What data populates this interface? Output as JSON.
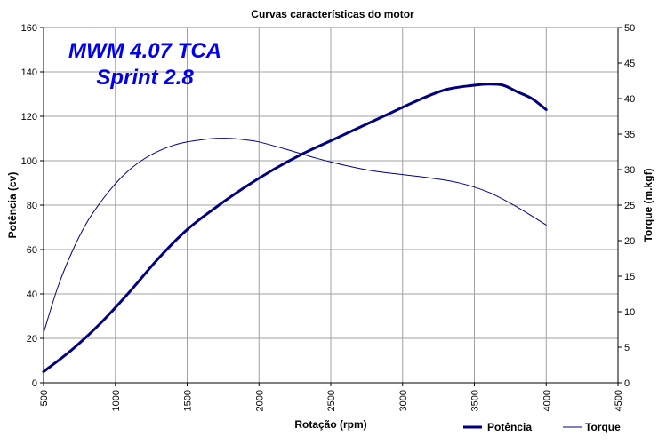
{
  "chart_data": {
    "type": "line",
    "title": "Curvas características do motor",
    "xlabel": "Rotação (rpm)",
    "ylabel": "Potência (cv)",
    "y2label": "Torque (m.kgf)",
    "xlim": [
      500,
      4500
    ],
    "ylim": [
      0,
      160
    ],
    "y2lim": [
      0,
      50
    ],
    "xticks": [
      "500",
      "1000",
      "1500",
      "2000",
      "2500",
      "3000",
      "3500",
      "4000",
      "4500"
    ],
    "yticks": [
      "0",
      "20",
      "40",
      "60",
      "80",
      "100",
      "120",
      "140",
      "160"
    ],
    "y2ticks": [
      "0",
      "5",
      "10",
      "15",
      "20",
      "25",
      "30",
      "35",
      "40",
      "45",
      "50"
    ],
    "grid": true,
    "legend_position": "bottom-right",
    "annotations": [
      "MWM 4.07 TCA",
      "Sprint 2.8"
    ],
    "series": [
      {
        "name": "Potência",
        "axis": "left",
        "color": "#000080",
        "x": [
          500,
          700,
          900,
          1100,
          1300,
          1500,
          1700,
          1900,
          2100,
          2300,
          2500,
          2700,
          2900,
          3100,
          3300,
          3500,
          3600,
          3700,
          3800,
          3900,
          4000
        ],
        "y": [
          5,
          15,
          27,
          41,
          56,
          69,
          79,
          88,
          96,
          103,
          109,
          115,
          121,
          127,
          132,
          134,
          134.5,
          134,
          131,
          128,
          123
        ]
      },
      {
        "name": "Torque",
        "axis": "right",
        "color": "#000080",
        "x": [
          500,
          600,
          700,
          800,
          900,
          1000,
          1100,
          1200,
          1300,
          1400,
          1500,
          1600,
          1700,
          1800,
          1900,
          2000,
          2200,
          2400,
          2600,
          2800,
          3000,
          3200,
          3400,
          3600,
          3800,
          4000
        ],
        "y": [
          7,
          13.5,
          18.5,
          22.5,
          25.5,
          28,
          30,
          31.5,
          32.6,
          33.4,
          33.9,
          34.2,
          34.4,
          34.4,
          34.2,
          33.9,
          32.8,
          31.6,
          30.6,
          29.8,
          29.3,
          28.8,
          28.1,
          26.8,
          24.7,
          22.2
        ]
      }
    ]
  }
}
